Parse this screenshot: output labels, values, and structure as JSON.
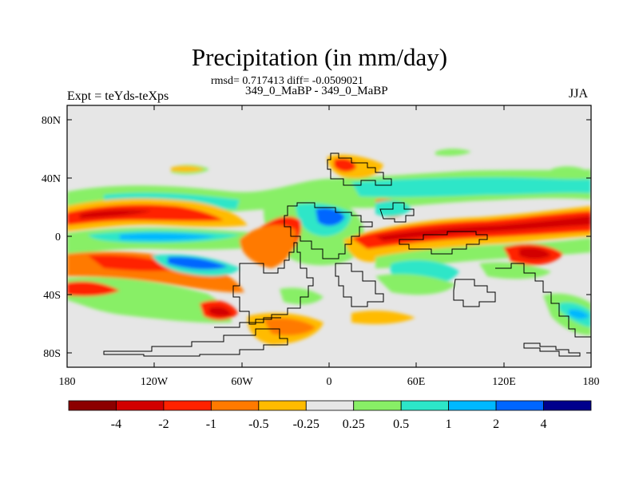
{
  "chart_data": {
    "type": "heatmap",
    "title": "Precipitation (in mm/day)",
    "stats_text": "rmsd= 0.717413 diff= -0.0509021",
    "subtitle": "349_0_MaBP - 349_0_MaBP",
    "left_label": "Expt = teYds-teXps",
    "right_label": "JJA",
    "x_axis": {
      "range": [
        -180,
        180
      ],
      "tick_labels": [
        "180",
        "120W",
        "60W",
        "0",
        "60E",
        "120E",
        "180"
      ]
    },
    "y_axis": {
      "range": [
        -90,
        90
      ],
      "tick_labels": [
        "80N",
        "40N",
        "0",
        "40S",
        "80S"
      ]
    },
    "colorbar": {
      "labels": [
        "-4",
        "-2",
        "-1",
        "-0.5",
        "-0.25",
        "0.25",
        "0.5",
        "1",
        "2",
        "4"
      ],
      "colors": [
        "#8c0000",
        "#d20000",
        "#ff2200",
        "#ff7a00",
        "#ffbb00",
        "#e6e6e6",
        "#88ef66",
        "#2de6c8",
        "#00b8ff",
        "#0066ff",
        "#00008c"
      ]
    },
    "background_color": "#e6e6e6"
  }
}
